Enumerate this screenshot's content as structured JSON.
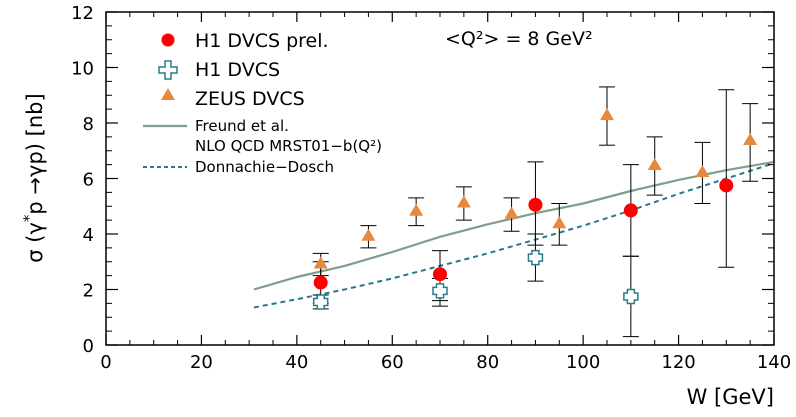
{
  "chart_data": {
    "type": "scatter",
    "title": "",
    "xlabel": "W [GeV]",
    "ylabel": "σ (γ*p →γp)  [nb]",
    "xlim": [
      0,
      140
    ],
    "ylim": [
      0,
      12
    ],
    "x_ticks": [
      "0",
      "20",
      "40",
      "60",
      "80",
      "100",
      "120",
      "140"
    ],
    "y_ticks": [
      "0",
      "2",
      "4",
      "6",
      "8",
      "10",
      "12"
    ],
    "grid": false,
    "legend_position": "top-left",
    "annotation": "<Q²> = 8 GeV²",
    "series": [
      {
        "name": "H1 DVCS prel.",
        "marker": "circle",
        "color": "#ff0000",
        "points": [
          {
            "x": 45,
            "y": 2.25,
            "lo": 1.5,
            "hi": 3.0
          },
          {
            "x": 70,
            "y": 2.55,
            "lo": 1.6,
            "hi": 3.4
          },
          {
            "x": 90,
            "y": 5.05,
            "lo": 3.6,
            "hi": 6.6
          },
          {
            "x": 110,
            "y": 4.85,
            "lo": 3.2,
            "hi": 6.5
          },
          {
            "x": 130,
            "y": 5.75,
            "lo": 2.8,
            "hi": 9.2
          }
        ]
      },
      {
        "name": "H1 DVCS",
        "marker": "open-cross",
        "color": "#2b7a8c",
        "points": [
          {
            "x": 45,
            "y": 1.55,
            "lo": 1.3,
            "hi": 1.8
          },
          {
            "x": 70,
            "y": 1.95,
            "lo": 1.4,
            "hi": 2.4
          },
          {
            "x": 90,
            "y": 3.15,
            "lo": 2.3,
            "hi": 4.0
          },
          {
            "x": 110,
            "y": 1.75,
            "lo": 0.3,
            "hi": 3.2
          }
        ]
      },
      {
        "name": "ZEUS DVCS",
        "marker": "triangle",
        "color": "#e8883a",
        "points": [
          {
            "x": 45,
            "y": 2.9,
            "lo": 2.5,
            "hi": 3.3
          },
          {
            "x": 55,
            "y": 3.9,
            "lo": 3.5,
            "hi": 4.3
          },
          {
            "x": 65,
            "y": 4.8,
            "lo": 4.3,
            "hi": 5.3
          },
          {
            "x": 75,
            "y": 5.1,
            "lo": 4.5,
            "hi": 5.7
          },
          {
            "x": 85,
            "y": 4.7,
            "lo": 4.1,
            "hi": 5.3
          },
          {
            "x": 95,
            "y": 4.35,
            "lo": 3.6,
            "hi": 5.1
          },
          {
            "x": 105,
            "y": 8.25,
            "lo": 7.2,
            "hi": 9.3
          },
          {
            "x": 115,
            "y": 6.45,
            "lo": 5.4,
            "hi": 7.5
          },
          {
            "x": 125,
            "y": 6.2,
            "lo": 5.1,
            "hi": 7.3
          },
          {
            "x": 135,
            "y": 7.35,
            "lo": 5.9,
            "hi": 8.7
          }
        ]
      }
    ],
    "curves": [
      {
        "name": "Freund et al.",
        "name_line2": "NLO QCD MRST01−b(Q²)",
        "style": "solid",
        "color": "#7f9f88",
        "points": [
          [
            31,
            2.0
          ],
          [
            40,
            2.45
          ],
          [
            50,
            2.85
          ],
          [
            60,
            3.35
          ],
          [
            70,
            3.9
          ],
          [
            80,
            4.35
          ],
          [
            90,
            4.75
          ],
          [
            100,
            5.1
          ],
          [
            110,
            5.55
          ],
          [
            120,
            5.95
          ],
          [
            130,
            6.3
          ],
          [
            140,
            6.6
          ]
        ]
      },
      {
        "name": "Donnachie−Dosch",
        "style": "dashed",
        "color": "#237b8b",
        "points": [
          [
            31,
            1.35
          ],
          [
            40,
            1.65
          ],
          [
            50,
            2.0
          ],
          [
            60,
            2.4
          ],
          [
            70,
            2.85
          ],
          [
            80,
            3.3
          ],
          [
            90,
            3.8
          ],
          [
            100,
            4.3
          ],
          [
            110,
            4.85
          ],
          [
            120,
            5.45
          ],
          [
            130,
            6.0
          ],
          [
            140,
            6.55
          ]
        ]
      }
    ]
  },
  "legend": {
    "entries": [
      {
        "label": "H1 DVCS prel."
      },
      {
        "label": "H1 DVCS"
      },
      {
        "label": "ZEUS DVCS"
      },
      {
        "label": "Freund et al.",
        "label2": "NLO QCD MRST01−b(Q²)"
      },
      {
        "label": "Donnachie−Dosch"
      }
    ]
  },
  "colors": {
    "h1_prel": "#ff0000",
    "h1": "#2b7a8c",
    "zeus": "#e8883a",
    "freund": "#7f9f88",
    "dd": "#237b8b",
    "axis": "#000000"
  }
}
